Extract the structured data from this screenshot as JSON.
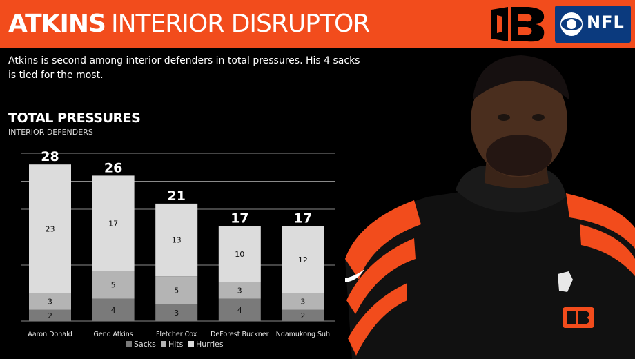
{
  "header": {
    "title_strong": "ATKINS",
    "title_light": "INTERIOR DISRUPTOR",
    "network_label": "NFL"
  },
  "subtitle": "Atkins is second among interior defenders in total pressures. His 4 sacks is tied for the most.",
  "colors": {
    "header_bg": "#f24c1c",
    "sacks": "#7a7a7a",
    "hits": "#b4b4b4",
    "hurries": "#dcdcdc",
    "bengals_orange": "#f24c1c"
  },
  "chart_data": {
    "type": "bar",
    "stacked": true,
    "title": "TOTAL PRESSURES",
    "subtitle": "INTERIOR DEFENDERS",
    "categories": [
      "Aaron Donald",
      "Geno Atkins",
      "Fletcher Cox",
      "DeForest Buckner",
      "Ndamukong Suh"
    ],
    "totals": [
      28,
      26,
      21,
      17,
      17
    ],
    "series": [
      {
        "name": "Sacks",
        "values": [
          2,
          4,
          3,
          4,
          2
        ]
      },
      {
        "name": "Hits",
        "values": [
          3,
          5,
          5,
          3,
          3
        ]
      },
      {
        "name": "Hurries",
        "values": [
          23,
          17,
          13,
          10,
          12
        ]
      }
    ],
    "ylim": [
      0,
      30
    ],
    "grid": true,
    "legend_position": "bottom-right"
  }
}
